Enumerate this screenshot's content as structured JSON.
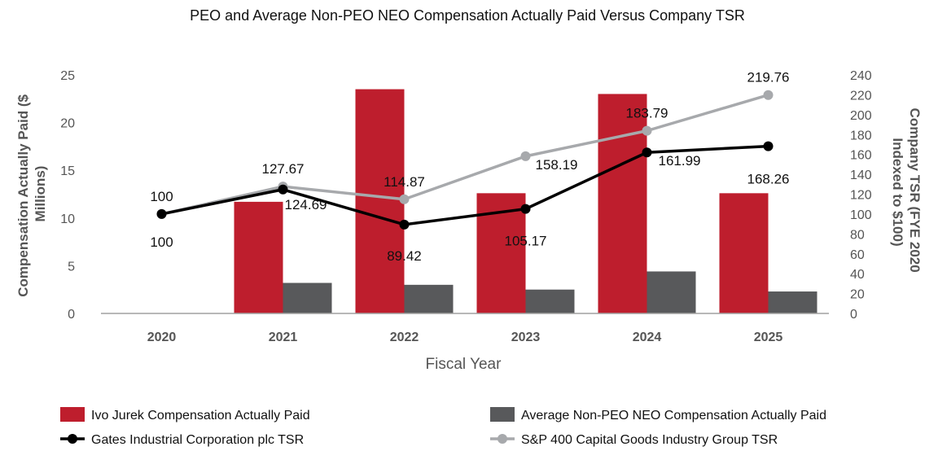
{
  "chart_data": {
    "type": "bar",
    "title": "PEO and Average Non-PEO NEO Compensation Actually Paid Versus Company TSR",
    "xlabel": "Fiscal Year",
    "ylabel": "Compensation Actually Paid ($ Millions)",
    "y2label": "Company TSR (FYE 2020 Indexed to $100)",
    "categories": [
      "2020",
      "2021",
      "2022",
      "2023",
      "2024",
      "2025"
    ],
    "ylim": [
      0,
      25
    ],
    "yticks": [
      "0",
      "5",
      "10",
      "15",
      "20",
      "25"
    ],
    "y2lim": [
      0,
      240
    ],
    "y2ticks": [
      "0",
      "20",
      "40",
      "60",
      "80",
      "100",
      "120",
      "140",
      "160",
      "180",
      "200",
      "220",
      "240"
    ],
    "grid": false,
    "legend_position": "bottom",
    "bar_series": [
      {
        "name": "Ivo Jurek Compensation Actually Paid",
        "color": "#be1e2d",
        "values": [
          0,
          11.7,
          23.5,
          12.6,
          23.0,
          12.6
        ]
      },
      {
        "name": "Average Non-PEO NEO Compensation Actually Paid",
        "color": "#58595b",
        "values": [
          0,
          3.2,
          3.0,
          2.5,
          4.4,
          2.3
        ]
      }
    ],
    "line_series": [
      {
        "name": "Gates Industrial Corporation plc TSR",
        "color": "#000000",
        "values": [
          100,
          124.69,
          89.42,
          105.17,
          161.99,
          168.26
        ],
        "labels": [
          "100",
          "124.69",
          "89.42",
          "105.17",
          "161.99",
          "168.26"
        ]
      },
      {
        "name": "S&P 400 Capital Goods Industry Group TSR",
        "color": "#a7a9ac",
        "values": [
          100,
          127.67,
          114.87,
          158.19,
          183.79,
          219.76
        ],
        "labels": [
          "100",
          "127.67",
          "114.87",
          "158.19",
          "183.79",
          "219.76"
        ]
      }
    ]
  }
}
